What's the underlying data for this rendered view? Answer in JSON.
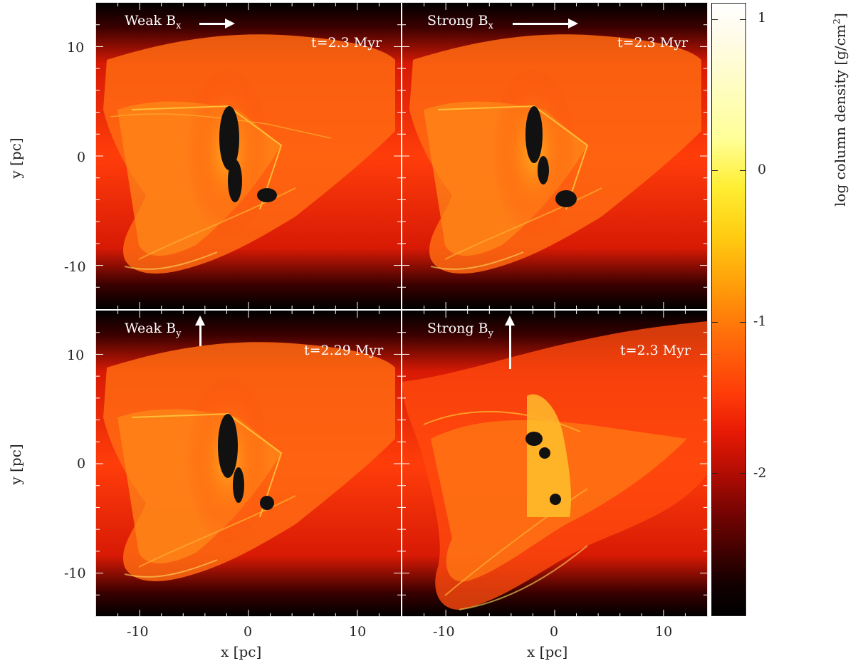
{
  "figure": {
    "panels": [
      {
        "id": "tl",
        "field_label": "Weak B",
        "field_sub": "x",
        "field_dir": "x",
        "arrow_strength": "weak",
        "time": "t=2.3 Myr"
      },
      {
        "id": "tr",
        "field_label": "Strong B",
        "field_sub": "x",
        "field_dir": "x",
        "arrow_strength": "strong",
        "time": "t=2.3 Myr"
      },
      {
        "id": "bl",
        "field_label": "Weak B",
        "field_sub": "y",
        "field_dir": "y",
        "arrow_strength": "weak",
        "time": "t=2.29 Myr"
      },
      {
        "id": "br",
        "field_label": "Strong B",
        "field_sub": "y",
        "field_dir": "y",
        "arrow_strength": "strong",
        "time": "t=2.3 Myr"
      }
    ],
    "x_axis": {
      "label": "x [pc]",
      "ticks": [
        "-10",
        "0",
        "10"
      ],
      "tick_values": [
        -10,
        0,
        10
      ],
      "range": [
        -14,
        14
      ]
    },
    "y_axis": {
      "label": "y [pc]",
      "ticks": [
        "10",
        "0",
        "-10"
      ],
      "tick_values": [
        10,
        0,
        -10
      ],
      "range": [
        -14,
        14
      ]
    },
    "colorbar": {
      "label": "log column density [g/cm",
      "label_sup": "2",
      "label_end": "]",
      "ticks": [
        "1",
        "0",
        "-1",
        "-2"
      ],
      "tick_values": [
        1,
        0,
        -1,
        -2
      ],
      "range": [
        -3,
        1.1
      ],
      "colors": [
        "#000000",
        "#800502",
        "#ff2a05",
        "#ff8a0a",
        "#ffcc11",
        "#ffff99",
        "#ffffff"
      ]
    }
  }
}
